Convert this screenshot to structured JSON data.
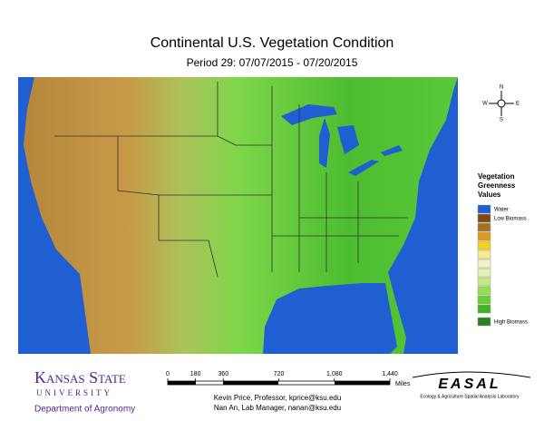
{
  "header": {
    "title": "Continental U.S. Vegetation Condition",
    "subtitle": "Period 29: 07/07/2015 - 07/20/2015"
  },
  "compass": {
    "north": "N",
    "west": "W",
    "east": "E",
    "south": "S"
  },
  "legend": {
    "title": [
      "Vegetation",
      "Greenness",
      "Values"
    ],
    "items": [
      {
        "label": "Water",
        "color": "#1f5fd2"
      },
      {
        "label": "Low Biomass",
        "color": "#7a4a12"
      },
      {
        "color": "#a8701e"
      },
      {
        "color": "#dd9a1e"
      },
      {
        "color": "#f3d21c"
      },
      {
        "color": "#f6ef86"
      },
      {
        "color": "#f2f2c8"
      },
      {
        "color": "#e2f2b2"
      },
      {
        "color": "#c2ea82"
      },
      {
        "color": "#94e050"
      },
      {
        "color": "#66d032"
      },
      {
        "color": "#3fb424"
      },
      {
        "label": "High Biomass",
        "color": "#2f7e22"
      }
    ]
  },
  "scale_bar": {
    "ticks": [
      "0",
      "180",
      "360",
      "720",
      "1,080",
      "1,440"
    ],
    "unit": "Miles"
  },
  "credits": [
    "Kevin Price, Professor, kprice@ksu.edu",
    "Nan An, Lab Manager, nanan@ksu.edu"
  ],
  "logos": {
    "ksu": {
      "name": "Kansas State",
      "subname": "UNIVERSITY",
      "department": "Department of Agronomy"
    },
    "easal": {
      "name": "EASAL",
      "subtitle": "Ecology & Agriculture Spatial Analysis Laboratory"
    }
  }
}
